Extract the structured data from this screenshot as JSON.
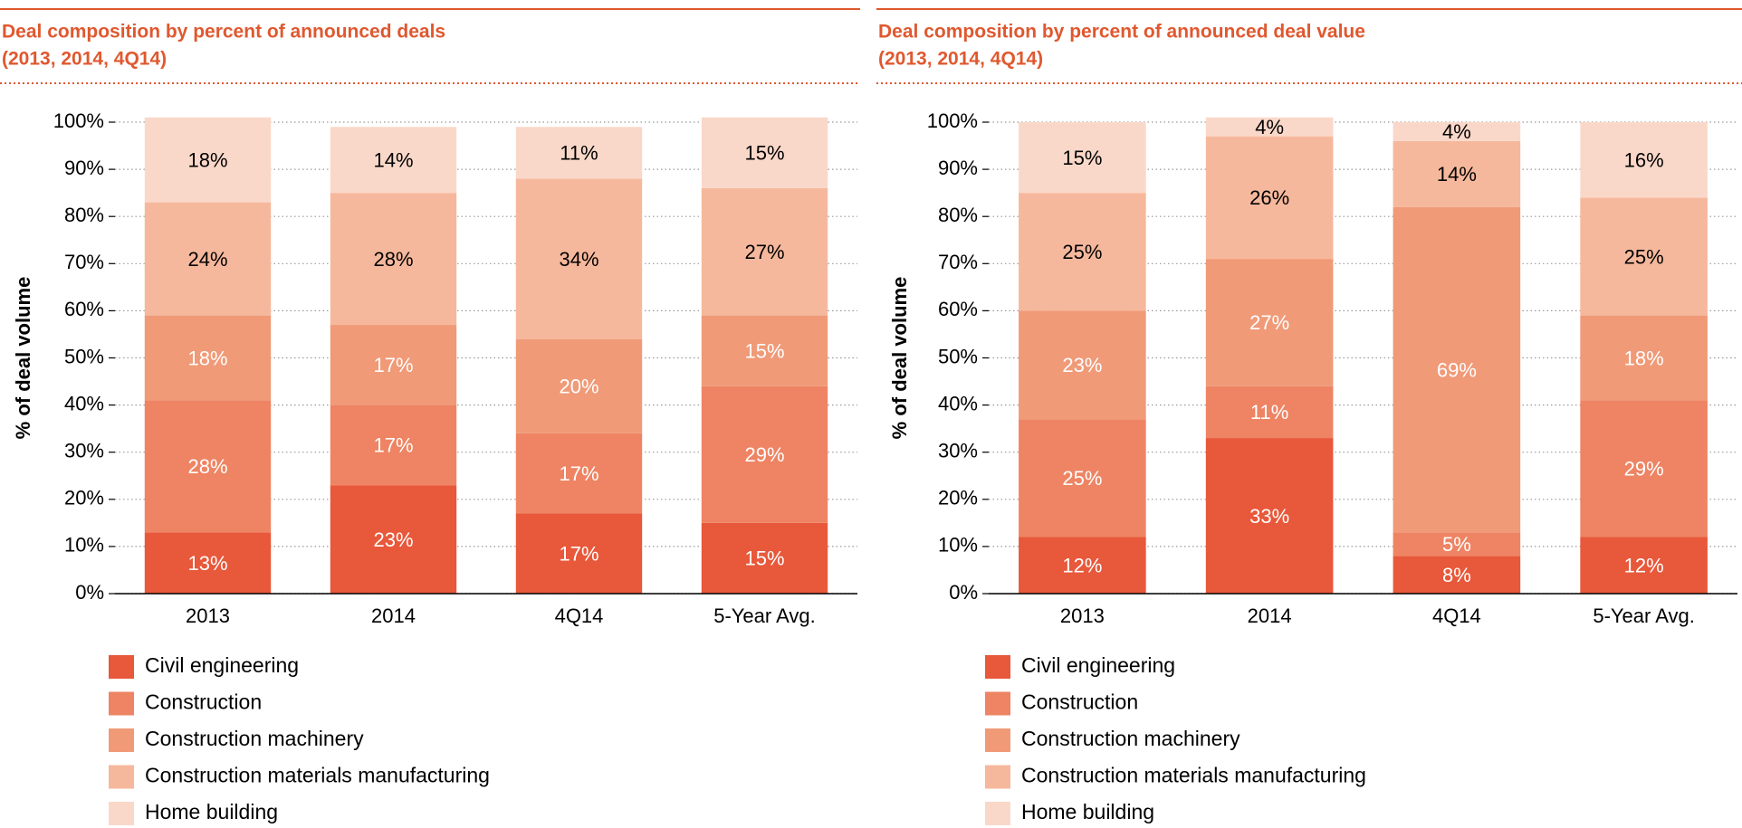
{
  "chart_data": [
    {
      "type": "bar",
      "stacked": true,
      "title": "Deal composition by percent of announced deals",
      "subtitle": "(2013, 2014, 4Q14)",
      "y_label": "% of deal volume",
      "categories": [
        "2013",
        "2014",
        "4Q14",
        "5-Year Avg."
      ],
      "ylim": [
        0,
        100
      ],
      "yticks": [
        {
          "value": 0,
          "label": "0%"
        },
        {
          "value": 10,
          "label": "10%"
        },
        {
          "value": 20,
          "label": "20%"
        },
        {
          "value": 30,
          "label": "30%"
        },
        {
          "value": 40,
          "label": "40%"
        },
        {
          "value": 50,
          "label": "50%"
        },
        {
          "value": 60,
          "label": "60%"
        },
        {
          "value": 70,
          "label": "70%"
        },
        {
          "value": 80,
          "label": "80%"
        },
        {
          "value": 90,
          "label": "90%"
        },
        {
          "value": 100,
          "label": "100%"
        }
      ],
      "grid": true,
      "series": [
        {
          "name": "Civil engineering",
          "color": "#e8583a",
          "values": [
            13,
            23,
            17,
            15
          ],
          "value_labels": [
            "13%",
            "23%",
            "17%",
            "15%"
          ]
        },
        {
          "name": "Construction",
          "color": "#ee8463",
          "values": [
            28,
            17,
            17,
            29
          ],
          "value_labels": [
            "28%",
            "17%",
            "17%",
            "29%"
          ]
        },
        {
          "name": "Construction machinery",
          "color": "#f09a78",
          "values": [
            18,
            17,
            20,
            15
          ],
          "value_labels": [
            "18%",
            "17%",
            "20%",
            "15%"
          ]
        },
        {
          "name": "Construction materials manufacturing",
          "color": "#f6b89c",
          "values": [
            24,
            28,
            34,
            27
          ],
          "value_labels": [
            "24%",
            "28%",
            "34%",
            "27%"
          ]
        },
        {
          "name": "Home building",
          "color": "#fad8c9",
          "values": [
            18,
            14,
            11,
            15
          ],
          "value_labels": [
            "18%",
            "14%",
            "11%",
            "15%"
          ]
        }
      ]
    },
    {
      "type": "bar",
      "stacked": true,
      "title": "Deal composition by percent of announced deal value",
      "subtitle": "(2013, 2014, 4Q14)",
      "y_label": "% of deal volume",
      "categories": [
        "2013",
        "2014",
        "4Q14",
        "5-Year Avg."
      ],
      "ylim": [
        0,
        100
      ],
      "yticks": [
        {
          "value": 0,
          "label": "0%"
        },
        {
          "value": 10,
          "label": "10%"
        },
        {
          "value": 20,
          "label": "20%"
        },
        {
          "value": 30,
          "label": "30%"
        },
        {
          "value": 40,
          "label": "40%"
        },
        {
          "value": 50,
          "label": "50%"
        },
        {
          "value": 60,
          "label": "60%"
        },
        {
          "value": 70,
          "label": "70%"
        },
        {
          "value": 80,
          "label": "80%"
        },
        {
          "value": 90,
          "label": "90%"
        },
        {
          "value": 100,
          "label": "100%"
        }
      ],
      "grid": true,
      "series": [
        {
          "name": "Civil engineering",
          "color": "#e8583a",
          "values": [
            12,
            33,
            8,
            12
          ],
          "value_labels": [
            "12%",
            "33%",
            "8%",
            "12%"
          ]
        },
        {
          "name": "Construction",
          "color": "#ee8463",
          "values": [
            25,
            11,
            5,
            29
          ],
          "value_labels": [
            "25%",
            "11%",
            "5%",
            "29%"
          ]
        },
        {
          "name": "Construction machinery",
          "color": "#f09a78",
          "values": [
            23,
            27,
            69,
            18
          ],
          "value_labels": [
            "23%",
            "27%",
            "69%",
            "18%"
          ]
        },
        {
          "name": "Construction materials manufacturing",
          "color": "#f6b89c",
          "values": [
            25,
            26,
            14,
            25
          ],
          "value_labels": [
            "25%",
            "26%",
            "14%",
            "25%"
          ]
        },
        {
          "name": "Home building",
          "color": "#fad8c9",
          "values": [
            15,
            4,
            4,
            16
          ],
          "value_labels": [
            "15%",
            "4%",
            "4%",
            "16%"
          ]
        }
      ]
    }
  ]
}
